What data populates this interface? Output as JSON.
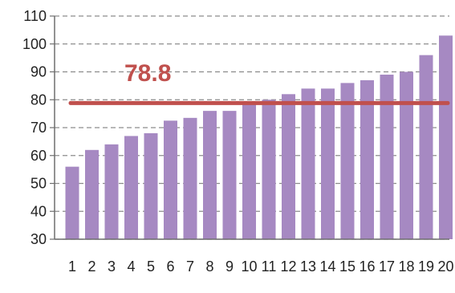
{
  "chart_data": {
    "type": "bar",
    "categories": [
      "1",
      "2",
      "3",
      "4",
      "5",
      "6",
      "7",
      "8",
      "9",
      "10",
      "11",
      "12",
      "13",
      "14",
      "15",
      "16",
      "17",
      "18",
      "19",
      "20"
    ],
    "values": [
      56,
      62,
      64,
      67,
      68,
      72.5,
      73.5,
      76,
      76,
      78.5,
      80,
      82,
      84,
      84,
      86,
      87,
      89,
      90,
      96,
      103
    ],
    "ylim": [
      30,
      110
    ],
    "yticks": [
      30,
      40,
      50,
      60,
      70,
      80,
      90,
      100,
      110
    ],
    "reference_line": {
      "value": 78.8,
      "label": "78.8"
    },
    "grid": true,
    "grid_style": "dashed",
    "legend": "none",
    "bar_color": "#a689c2",
    "line_color": "#c0504d"
  }
}
